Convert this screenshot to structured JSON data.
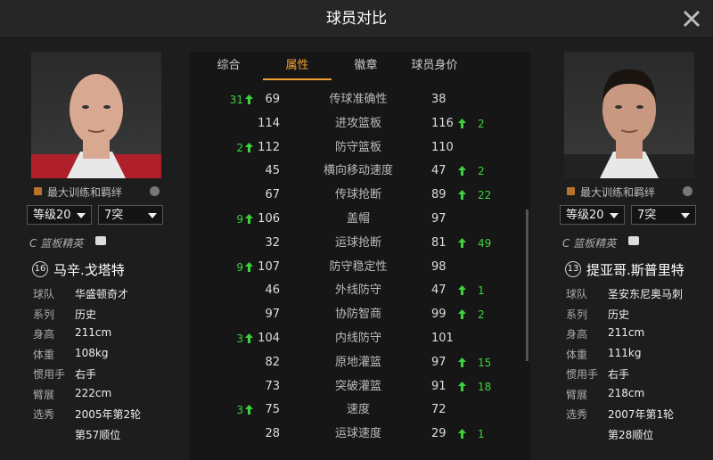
{
  "header": {
    "title": "球员对比"
  },
  "tabs": {
    "items": [
      "综合",
      "属性",
      "徽章",
      "球员身价"
    ],
    "active": 1
  },
  "players": [
    {
      "option": "最大训练和羁绊",
      "level": "等级20",
      "breakthrough": "7突",
      "role": "C 篮板精英",
      "number": "16",
      "name": "马辛.戈塔特",
      "info": [
        [
          "球队",
          "华盛顿奇才"
        ],
        [
          "系列",
          "历史"
        ],
        [
          "身高",
          "211cm"
        ],
        [
          "体重",
          "108kg"
        ],
        [
          "惯用手",
          "右手"
        ],
        [
          "臂展",
          "222cm"
        ],
        [
          "选秀",
          "2005年第2轮"
        ]
      ],
      "draft_pick": "第57顺位"
    },
    {
      "option": "最大训练和羁绊",
      "level": "等级20",
      "breakthrough": "7突",
      "role": "C 篮板精英",
      "number": "13",
      "name": "提亚哥.斯普里特",
      "info": [
        [
          "球队",
          "圣安东尼奥马刺"
        ],
        [
          "系列",
          "历史"
        ],
        [
          "身高",
          "211cm"
        ],
        [
          "体重",
          "111kg"
        ],
        [
          "惯用手",
          "右手"
        ],
        [
          "臂展",
          "218cm"
        ],
        [
          "选秀",
          "2007年第1轮"
        ]
      ],
      "draft_pick": "第28顺位"
    }
  ],
  "stats": [
    {
      "name": "传球准确性",
      "left": 69,
      "right": 38,
      "left_diff": 31,
      "right_diff": null
    },
    {
      "name": "进攻篮板",
      "left": 114,
      "right": 116,
      "left_diff": null,
      "right_diff": 2
    },
    {
      "name": "防守篮板",
      "left": 112,
      "right": 110,
      "left_diff": 2,
      "right_diff": null
    },
    {
      "name": "横向移动速度",
      "left": 45,
      "right": 47,
      "left_diff": null,
      "right_diff": 2
    },
    {
      "name": "传球抢断",
      "left": 67,
      "right": 89,
      "left_diff": null,
      "right_diff": 22
    },
    {
      "name": "盖帽",
      "left": 106,
      "right": 97,
      "left_diff": 9,
      "right_diff": null
    },
    {
      "name": "运球抢断",
      "left": 32,
      "right": 81,
      "left_diff": null,
      "right_diff": 49
    },
    {
      "name": "防守稳定性",
      "left": 107,
      "right": 98,
      "left_diff": 9,
      "right_diff": null
    },
    {
      "name": "外线防守",
      "left": 46,
      "right": 47,
      "left_diff": null,
      "right_diff": 1
    },
    {
      "name": "协防智商",
      "left": 97,
      "right": 99,
      "left_diff": null,
      "right_diff": 2
    },
    {
      "name": "内线防守",
      "left": 104,
      "right": 101,
      "left_diff": 3,
      "right_diff": null
    },
    {
      "name": "原地灌篮",
      "left": 82,
      "right": 97,
      "left_diff": null,
      "right_diff": 15
    },
    {
      "name": "突破灌篮",
      "left": 73,
      "right": 91,
      "left_diff": null,
      "right_diff": 18
    },
    {
      "name": "速度",
      "left": 75,
      "right": 72,
      "left_diff": 3,
      "right_diff": null
    },
    {
      "name": "运球速度",
      "left": 28,
      "right": 29,
      "left_diff": null,
      "right_diff": 1
    }
  ]
}
